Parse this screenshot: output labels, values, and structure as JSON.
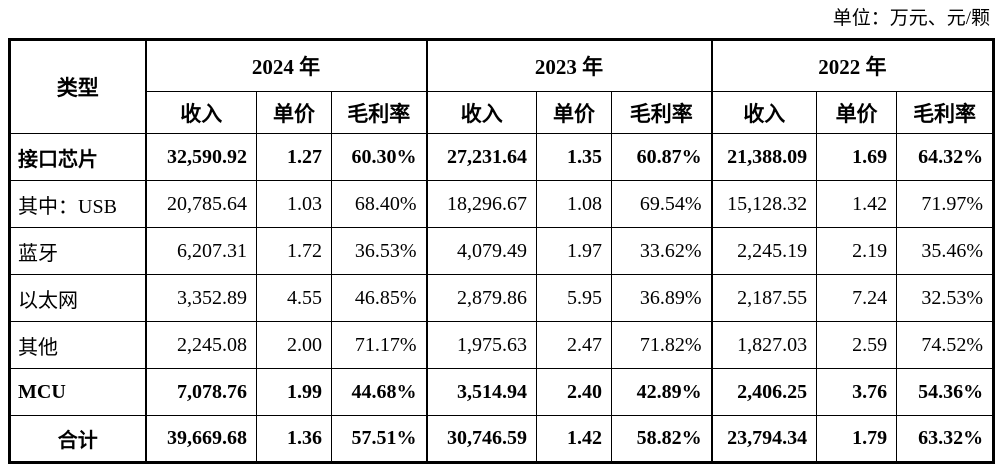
{
  "unit_label": "单位：万元、元/颗",
  "table": {
    "type_header": "类型",
    "year_groups": [
      {
        "year": "2024 年",
        "sub_columns": [
          "收入",
          "单价",
          "毛利率"
        ]
      },
      {
        "year": "2023 年",
        "sub_columns": [
          "收入",
          "单价",
          "毛利率"
        ]
      },
      {
        "year": "2022 年",
        "sub_columns": [
          "收入",
          "单价",
          "毛利率"
        ]
      }
    ],
    "rows": [
      {
        "label": "接口芯片",
        "bold": true,
        "label_align": "left",
        "values": [
          "32,590.92",
          "1.27",
          "60.30%",
          "27,231.64",
          "1.35",
          "60.87%",
          "21,388.09",
          "1.69",
          "64.32%"
        ]
      },
      {
        "label": "其中：USB",
        "bold": false,
        "label_align": "left",
        "values": [
          "20,785.64",
          "1.03",
          "68.40%",
          "18,296.67",
          "1.08",
          "69.54%",
          "15,128.32",
          "1.42",
          "71.97%"
        ]
      },
      {
        "label": "蓝牙",
        "bold": false,
        "label_align": "left",
        "values": [
          "6,207.31",
          "1.72",
          "36.53%",
          "4,079.49",
          "1.97",
          "33.62%",
          "2,245.19",
          "2.19",
          "35.46%"
        ]
      },
      {
        "label": "以太网",
        "bold": false,
        "label_align": "left",
        "values": [
          "3,352.89",
          "4.55",
          "46.85%",
          "2,879.86",
          "5.95",
          "36.89%",
          "2,187.55",
          "7.24",
          "32.53%"
        ]
      },
      {
        "label": "其他",
        "bold": false,
        "label_align": "left",
        "values": [
          "2,245.08",
          "2.00",
          "71.17%",
          "1,975.63",
          "2.47",
          "71.82%",
          "1,827.03",
          "2.59",
          "74.52%"
        ]
      },
      {
        "label": "MCU",
        "bold": true,
        "label_align": "left",
        "values": [
          "7,078.76",
          "1.99",
          "44.68%",
          "3,514.94",
          "2.40",
          "42.89%",
          "2,406.25",
          "3.76",
          "54.36%"
        ]
      },
      {
        "label": "合计",
        "bold": true,
        "label_align": "center",
        "values": [
          "39,669.68",
          "1.36",
          "57.51%",
          "30,746.59",
          "1.42",
          "58.82%",
          "23,794.34",
          "1.79",
          "63.32%"
        ]
      }
    ]
  },
  "colors": {
    "text": "#000000",
    "border": "#000000",
    "background": "#ffffff"
  }
}
